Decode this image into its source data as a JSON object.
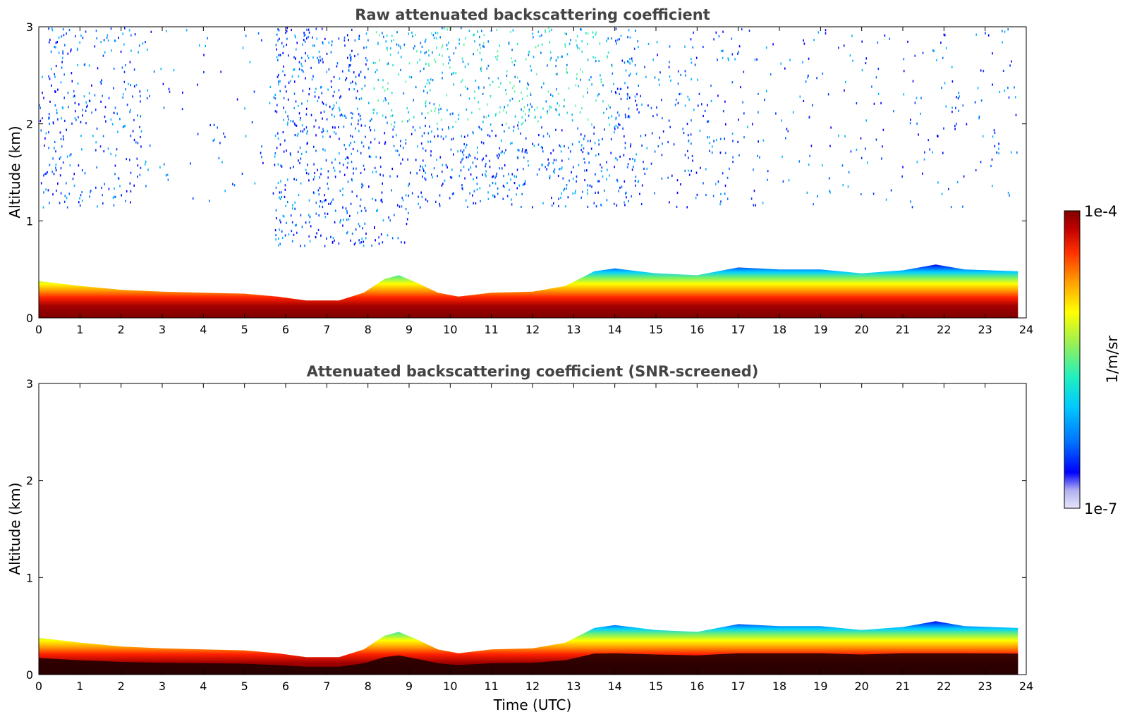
{
  "chart_data": [
    {
      "type": "heatmap",
      "title": "Raw attenuated backscattering coefficient",
      "xlabel": "",
      "ylabel": "Altitude (km)",
      "xlim": [
        0,
        24
      ],
      "ylim": [
        0,
        3
      ],
      "x_ticks": [
        "0",
        "1",
        "2",
        "3",
        "4",
        "5",
        "6",
        "7",
        "8",
        "9",
        "10",
        "11",
        "12",
        "13",
        "14",
        "15",
        "16",
        "17",
        "18",
        "19",
        "20",
        "21",
        "22",
        "23",
        "24"
      ],
      "y_ticks": [
        "0",
        "1",
        "2",
        "3"
      ],
      "grid": false,
      "noise_above_layer": true,
      "layer_top_km": [
        [
          0,
          0.38
        ],
        [
          1,
          0.33
        ],
        [
          2,
          0.29
        ],
        [
          3,
          0.27
        ],
        [
          4,
          0.26
        ],
        [
          5,
          0.25
        ],
        [
          5.8,
          0.22
        ],
        [
          6.5,
          0.18
        ],
        [
          7.3,
          0.18
        ],
        [
          7.9,
          0.26
        ],
        [
          8.4,
          0.4
        ],
        [
          8.75,
          0.44
        ],
        [
          9.2,
          0.36
        ],
        [
          9.7,
          0.26
        ],
        [
          10.2,
          0.22
        ],
        [
          11,
          0.26
        ],
        [
          12,
          0.27
        ],
        [
          12.8,
          0.33
        ],
        [
          13.5,
          0.48
        ],
        [
          14,
          0.51
        ],
        [
          15,
          0.46
        ],
        [
          16,
          0.44
        ],
        [
          17,
          0.52
        ],
        [
          18,
          0.5
        ],
        [
          19,
          0.5
        ],
        [
          20,
          0.46
        ],
        [
          21,
          0.49
        ],
        [
          21.8,
          0.55
        ],
        [
          22.5,
          0.5
        ],
        [
          23.8,
          0.48
        ]
      ]
    },
    {
      "type": "heatmap",
      "title": "Attenuated backscattering coefficient (SNR-screened)",
      "xlabel": "Time (UTC)",
      "ylabel": "Altitude (km)",
      "xlim": [
        0,
        24
      ],
      "ylim": [
        0,
        3
      ],
      "x_ticks": [
        "0",
        "1",
        "2",
        "3",
        "4",
        "5",
        "6",
        "7",
        "8",
        "9",
        "10",
        "11",
        "12",
        "13",
        "14",
        "15",
        "16",
        "17",
        "18",
        "19",
        "20",
        "21",
        "22",
        "23",
        "24"
      ],
      "y_ticks": [
        "0",
        "1",
        "2",
        "3"
      ],
      "grid": false,
      "noise_above_layer": false,
      "layer_top_km": [
        [
          0,
          0.38
        ],
        [
          1,
          0.33
        ],
        [
          2,
          0.29
        ],
        [
          3,
          0.27
        ],
        [
          4,
          0.26
        ],
        [
          5,
          0.25
        ],
        [
          5.8,
          0.22
        ],
        [
          6.5,
          0.18
        ],
        [
          7.3,
          0.18
        ],
        [
          7.9,
          0.26
        ],
        [
          8.4,
          0.4
        ],
        [
          8.75,
          0.44
        ],
        [
          9.2,
          0.36
        ],
        [
          9.7,
          0.26
        ],
        [
          10.2,
          0.22
        ],
        [
          11,
          0.26
        ],
        [
          12,
          0.27
        ],
        [
          12.8,
          0.33
        ],
        [
          13.5,
          0.48
        ],
        [
          14,
          0.51
        ],
        [
          15,
          0.46
        ],
        [
          16,
          0.44
        ],
        [
          17,
          0.52
        ],
        [
          18,
          0.5
        ],
        [
          19,
          0.5
        ],
        [
          20,
          0.46
        ],
        [
          21,
          0.49
        ],
        [
          21.8,
          0.55
        ],
        [
          22.5,
          0.5
        ],
        [
          23.8,
          0.48
        ]
      ]
    }
  ],
  "colorbar": {
    "label": "1/m/sr",
    "max_label": "1e-4",
    "min_label": "1e-7",
    "scale": "log",
    "colormap": "jet",
    "colors": [
      "#e6e6fa",
      "#b0b0f0",
      "#0000ff",
      "#0070ff",
      "#00c8ff",
      "#20f0c0",
      "#a0f050",
      "#ffff00",
      "#ffa000",
      "#ff3000",
      "#c00000",
      "#800000"
    ]
  }
}
